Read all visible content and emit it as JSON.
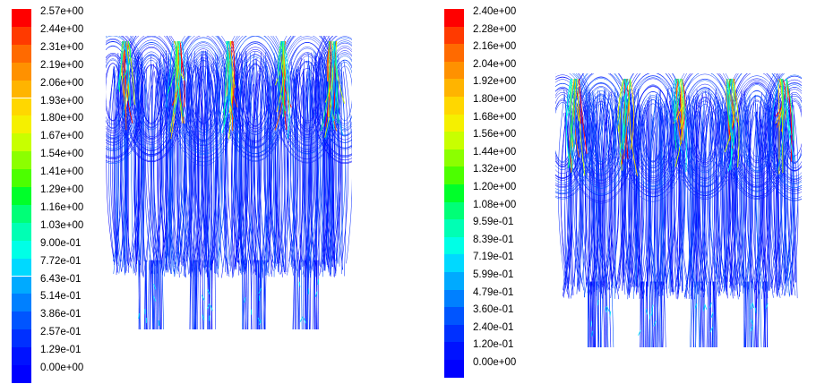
{
  "legend_left": {
    "labels": [
      "2.57e+00",
      "2.44e+00",
      "2.31e+00",
      "2.19e+00",
      "2.06e+00",
      "1.93e+00",
      "1.80e+00",
      "1.67e+00",
      "1.54e+00",
      "1.41e+00",
      "1.29e+00",
      "1.16e+00",
      "1.03e+00",
      "9.00e-01",
      "7.72e-01",
      "6.43e-01",
      "5.14e-01",
      "3.86e-01",
      "2.57e-01",
      "1.29e-01",
      "0.00e+00"
    ]
  },
  "legend_right": {
    "labels": [
      "2.40e+00",
      "2.28e+00",
      "2.16e+00",
      "2.04e+00",
      "1.92e+00",
      "1.80e+00",
      "1.68e+00",
      "1.56e+00",
      "1.44e+00",
      "1.32e+00",
      "1.20e+00",
      "1.08e+00",
      "9.59e-01",
      "8.39e-01",
      "7.19e-01",
      "5.99e-01",
      "4.79e-01",
      "3.60e-01",
      "2.40e-01",
      "1.20e-01",
      "0.00e+00"
    ]
  },
  "colormap": [
    "#ff0000",
    "#ff3a00",
    "#ff6a00",
    "#ff9100",
    "#ffb400",
    "#ffd700",
    "#f5f000",
    "#c8ff00",
    "#8cff00",
    "#4cff00",
    "#00ff2a",
    "#00ff77",
    "#00ffb4",
    "#00ffe6",
    "#00d9ff",
    "#00aaff",
    "#0080ff",
    "#0055ff",
    "#0030ff",
    "#0012ff",
    "#0000ff"
  ]
}
